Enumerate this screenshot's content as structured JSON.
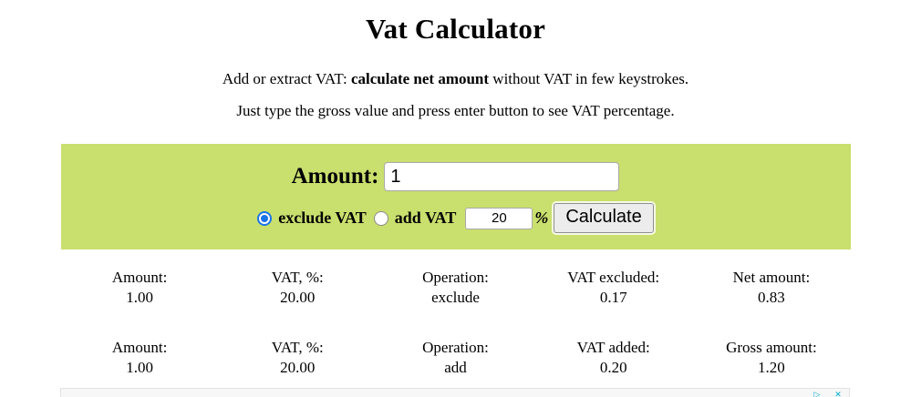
{
  "page": {
    "title": "Vat Calculator",
    "intro": {
      "line1_prefix": "Add or extract VAT: ",
      "line1_bold": "calculate net amount",
      "line1_suffix": " without VAT in few keystrokes.",
      "line2": "Just type the gross value and press enter button to see VAT percentage."
    }
  },
  "calculator": {
    "amount_label": "Amount:",
    "amount_value": "1",
    "exclude_option_label": "exclude VAT",
    "exclude_option_selected": true,
    "add_option_label": "add VAT",
    "add_option_selected": false,
    "vat_rate_value": "20",
    "percent_sign": "%",
    "calculate_button_label": "Calculate",
    "colors": {
      "panel_background": "#c9df6e",
      "radio_selected": "#1a73e8",
      "button_background": "#ececec"
    }
  },
  "results": [
    {
      "cells": [
        {
          "label": "Amount:",
          "value": "1.00"
        },
        {
          "label": "VAT, %:",
          "value": "20.00"
        },
        {
          "label": "Operation:",
          "value": "exclude"
        },
        {
          "label": "VAT excluded:",
          "value": "0.17"
        },
        {
          "label": "Net amount:",
          "value": "0.83"
        }
      ]
    },
    {
      "cells": [
        {
          "label": "Amount:",
          "value": "1.00"
        },
        {
          "label": "VAT, %:",
          "value": "20.00"
        },
        {
          "label": "Operation:",
          "value": "add"
        },
        {
          "label": "VAT added:",
          "value": "0.20"
        },
        {
          "label": "Gross amount:",
          "value": "1.20"
        }
      ]
    }
  ],
  "ad_strip": {
    "adchoices_glyph": "▷",
    "close_glyph": "✕",
    "icon_color": "#00aecd"
  }
}
